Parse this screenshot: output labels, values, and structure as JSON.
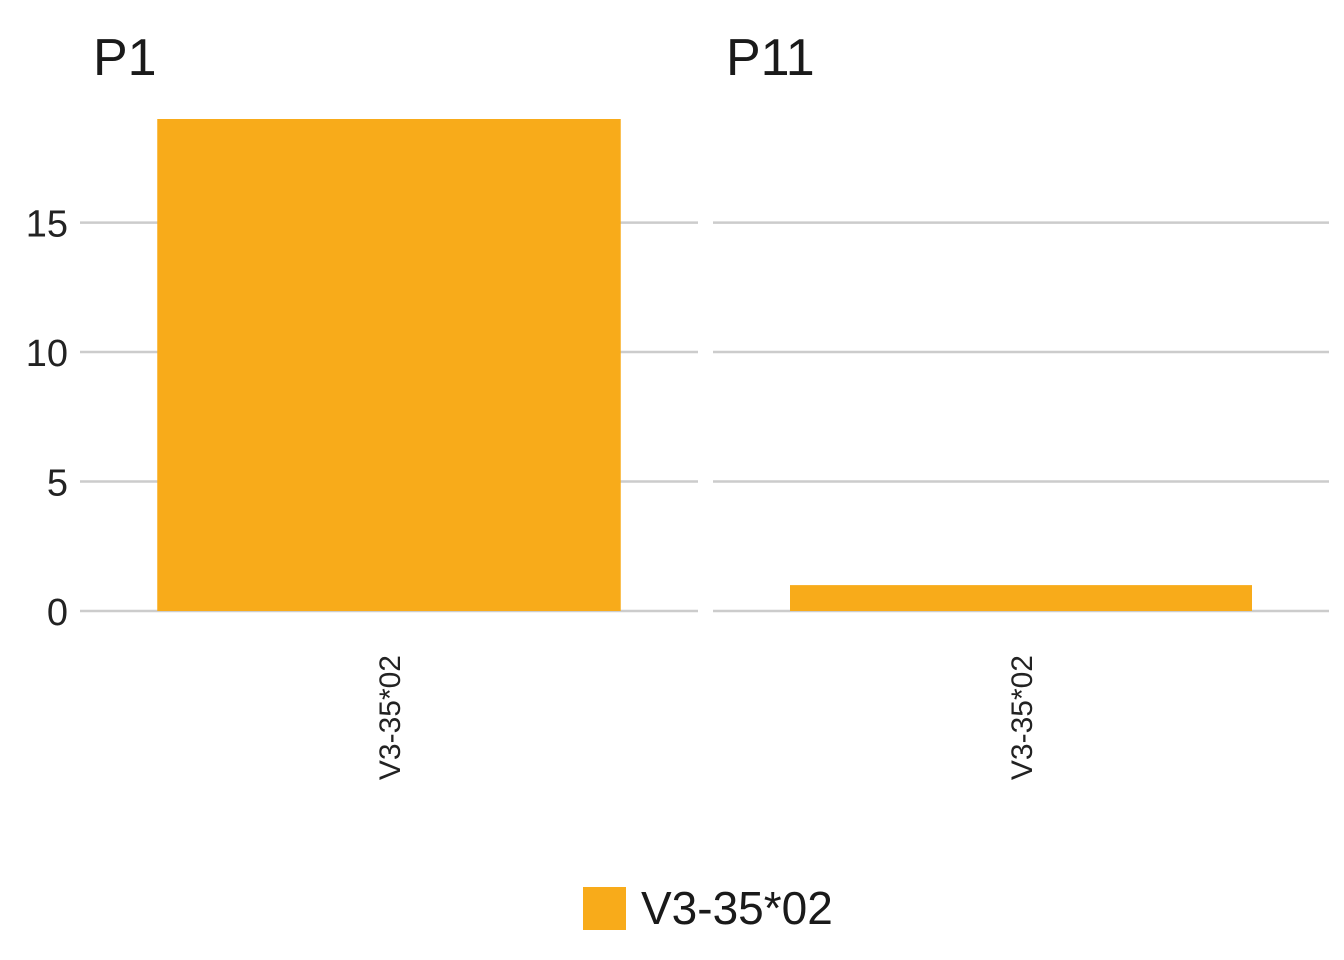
{
  "colors": {
    "bar": "#F8AB1A",
    "grid": "#cccccc",
    "text": "#1a1a1a"
  },
  "chart_data": {
    "type": "bar",
    "facets": [
      {
        "title": "P1",
        "categories": [
          "V3-35*02"
        ],
        "values": [
          19
        ]
      },
      {
        "title": "P11",
        "categories": [
          "V3-35*02"
        ],
        "values": [
          1
        ]
      }
    ],
    "ylim": [
      0,
      19
    ],
    "yticks": [
      0,
      5,
      10,
      15
    ],
    "grid": true,
    "legend": {
      "placement": "bottom",
      "entries": [
        "V3-35*02"
      ]
    }
  }
}
